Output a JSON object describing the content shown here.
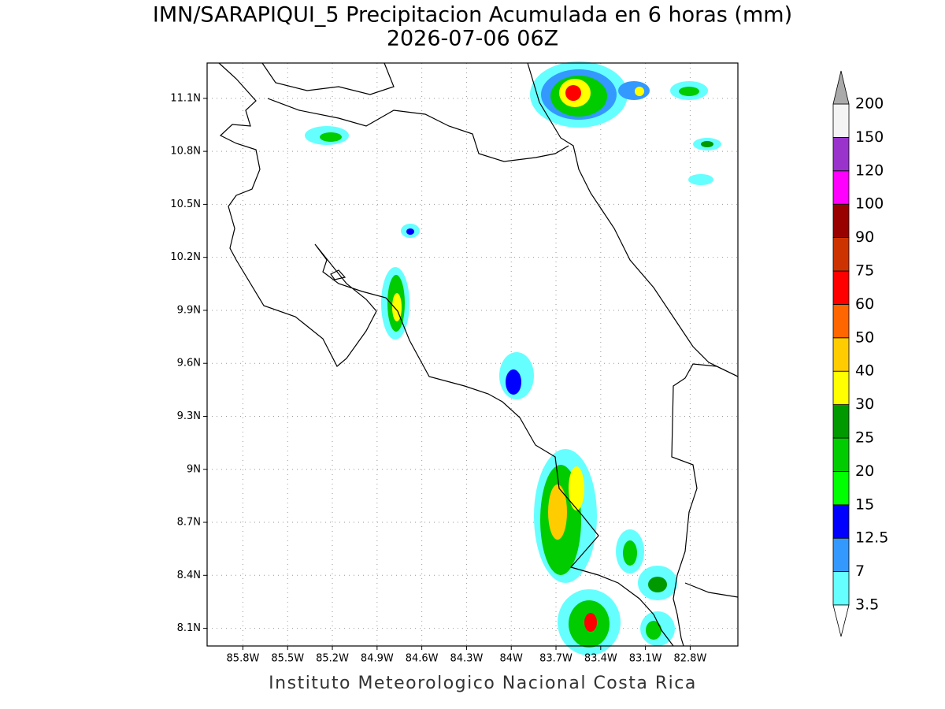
{
  "chart_data": {
    "type": "contour-map",
    "title": "IMN/SARAPIQUI_5 Precipitacion Acumulada en 6 horas (mm)",
    "subtitle": "2026-07-06 06Z",
    "xlim": [
      -86.04,
      -82.48
    ],
    "ylim": [
      8.0,
      11.3
    ],
    "xticks": [
      {
        "value": -85.8,
        "label": "85.8W"
      },
      {
        "value": -85.5,
        "label": "85.5W"
      },
      {
        "value": -85.2,
        "label": "85.2W"
      },
      {
        "value": -84.9,
        "label": "84.9W"
      },
      {
        "value": -84.6,
        "label": "84.6W"
      },
      {
        "value": -84.3,
        "label": "84.3W"
      },
      {
        "value": -84.0,
        "label": "84W"
      },
      {
        "value": -83.7,
        "label": "83.7W"
      },
      {
        "value": -83.4,
        "label": "83.4W"
      },
      {
        "value": -83.1,
        "label": "83.1W"
      },
      {
        "value": -82.8,
        "label": "82.8W"
      }
    ],
    "yticks": [
      {
        "value": 8.1,
        "label": "8.1N"
      },
      {
        "value": 8.4,
        "label": "8.4N"
      },
      {
        "value": 8.7,
        "label": "8.7N"
      },
      {
        "value": 9.0,
        "label": "9N"
      },
      {
        "value": 9.3,
        "label": "9.3N"
      },
      {
        "value": 9.6,
        "label": "9.6N"
      },
      {
        "value": 9.9,
        "label": "9.9N"
      },
      {
        "value": 10.2,
        "label": "10.2N"
      },
      {
        "value": 10.5,
        "label": "10.5N"
      },
      {
        "value": 10.8,
        "label": "10.8N"
      },
      {
        "value": 11.1,
        "label": "11.1N"
      }
    ],
    "grid": true,
    "colorbar": {
      "levels": [
        3.5,
        7,
        12.5,
        15,
        20,
        25,
        30,
        40,
        50,
        60,
        75,
        90,
        100,
        120,
        150,
        200
      ],
      "colors": [
        "#66ffff",
        "#3399ff",
        "#0000ff",
        "#00ff00",
        "#00cc00",
        "#009900",
        "#ffff00",
        "#ffcc00",
        "#ff6600",
        "#ff0000",
        "#cc3300",
        "#990000",
        "#ff00ff",
        "#9933cc",
        "#f4f4f4"
      ],
      "under_color": "#ffffff",
      "over_color": "#aaaaaa"
    },
    "footer": "Instituto Meteorologico Nacional Costa Rica"
  }
}
